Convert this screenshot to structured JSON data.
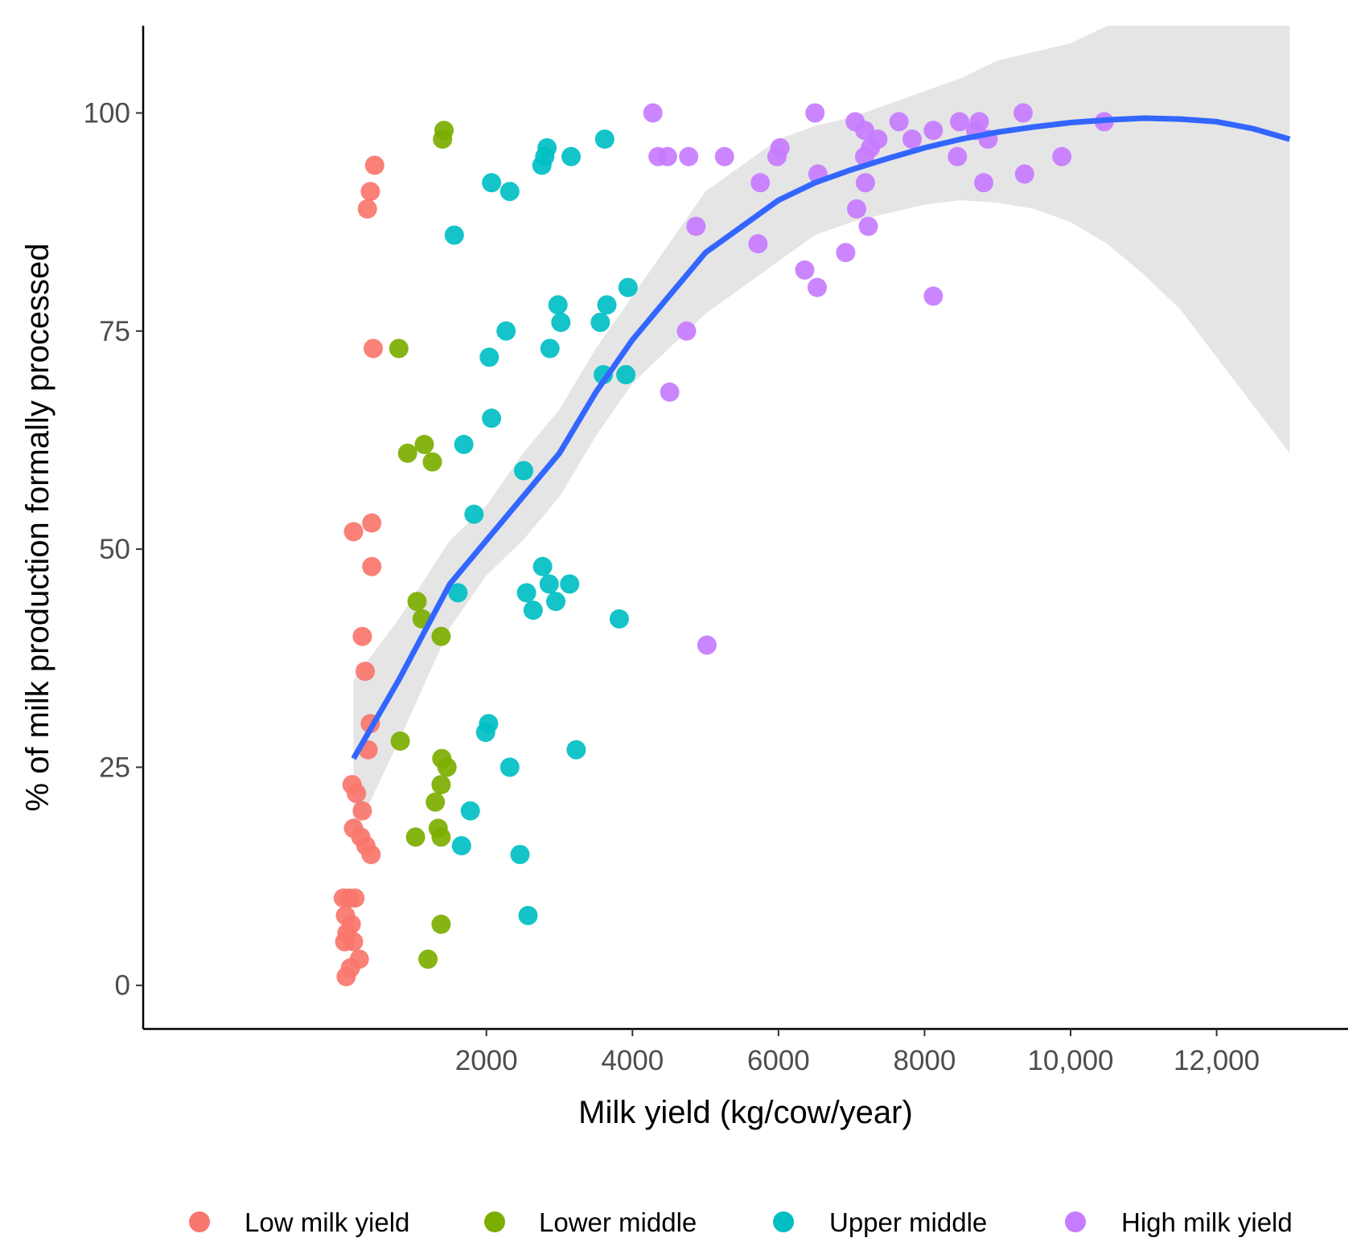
{
  "chart_data": {
    "type": "scatter",
    "title": "",
    "xlabel": "Milk yield (kg/cow/year)",
    "ylabel": "% of milk production formally processed",
    "xlim": [
      -2700,
      13800
    ],
    "ylim": [
      -5,
      110
    ],
    "x_ticks": [
      {
        "value": 2000,
        "label": "2000"
      },
      {
        "value": 4000,
        "label": "4000"
      },
      {
        "value": 6000,
        "label": "6000"
      },
      {
        "value": 8000,
        "label": "8000"
      },
      {
        "value": 10000,
        "label": "10,000"
      },
      {
        "value": 12000,
        "label": "12,000"
      }
    ],
    "y_ticks": [
      {
        "value": 0,
        "label": "0"
      },
      {
        "value": 25,
        "label": "25"
      },
      {
        "value": 50,
        "label": "50"
      },
      {
        "value": 75,
        "label": "75"
      },
      {
        "value": 100,
        "label": "100"
      }
    ],
    "grid": false,
    "legend_position": "bottom",
    "series": [
      {
        "name": "Low milk yield",
        "color": "#f8766d",
        "points": [
          [
            470,
            94
          ],
          [
            410,
            91
          ],
          [
            370,
            89
          ],
          [
            450,
            73
          ],
          [
            180,
            52
          ],
          [
            430,
            53
          ],
          [
            430,
            48
          ],
          [
            300,
            40
          ],
          [
            340,
            36
          ],
          [
            410,
            30
          ],
          [
            380,
            27
          ],
          [
            160,
            23
          ],
          [
            220,
            22
          ],
          [
            300,
            20
          ],
          [
            180,
            18
          ],
          [
            280,
            17
          ],
          [
            350,
            16
          ],
          [
            420,
            15
          ],
          [
            40,
            10
          ],
          [
            120,
            10
          ],
          [
            200,
            10
          ],
          [
            70,
            8
          ],
          [
            150,
            7
          ],
          [
            90,
            6
          ],
          [
            180,
            5
          ],
          [
            60,
            5
          ],
          [
            140,
            2
          ],
          [
            80,
            1
          ],
          [
            260,
            3
          ]
        ]
      },
      {
        "name": "Lower middle",
        "color": "#7cae00",
        "points": [
          [
            1420,
            98
          ],
          [
            1400,
            97
          ],
          [
            800,
            73
          ],
          [
            920,
            61
          ],
          [
            1150,
            62
          ],
          [
            1260,
            60
          ],
          [
            1050,
            44
          ],
          [
            1120,
            42
          ],
          [
            1380,
            40
          ],
          [
            820,
            28
          ],
          [
            1390,
            26
          ],
          [
            1460,
            25
          ],
          [
            1380,
            23
          ],
          [
            1300,
            21
          ],
          [
            1030,
            17
          ],
          [
            1380,
            17
          ],
          [
            1340,
            18
          ],
          [
            1380,
            7
          ],
          [
            1200,
            3
          ]
        ]
      },
      {
        "name": "Upper middle",
        "color": "#00bfc4",
        "points": [
          [
            3620,
            97
          ],
          [
            2830,
            96
          ],
          [
            2800,
            95
          ],
          [
            3160,
            95
          ],
          [
            2760,
            94
          ],
          [
            2070,
            92
          ],
          [
            2320,
            91
          ],
          [
            1560,
            86
          ],
          [
            3940,
            80
          ],
          [
            2980,
            78
          ],
          [
            3650,
            78
          ],
          [
            3560,
            76
          ],
          [
            3020,
            76
          ],
          [
            2270,
            75
          ],
          [
            2870,
            73
          ],
          [
            2040,
            72
          ],
          [
            3600,
            70
          ],
          [
            3910,
            70
          ],
          [
            2070,
            65
          ],
          [
            1690,
            62
          ],
          [
            2510,
            59
          ],
          [
            1830,
            54
          ],
          [
            2770,
            48
          ],
          [
            2860,
            46
          ],
          [
            3140,
            46
          ],
          [
            1610,
            45
          ],
          [
            2550,
            45
          ],
          [
            2640,
            43
          ],
          [
            2950,
            44
          ],
          [
            3820,
            42
          ],
          [
            2030,
            30
          ],
          [
            1990,
            29
          ],
          [
            3230,
            27
          ],
          [
            2320,
            25
          ],
          [
            1780,
            20
          ],
          [
            1660,
            16
          ],
          [
            2460,
            15
          ],
          [
            2570,
            8
          ]
        ]
      },
      {
        "name": "High milk yield",
        "color": "#c77cff",
        "points": [
          [
            4280,
            100
          ],
          [
            6500,
            100
          ],
          [
            7650,
            99
          ],
          [
            8480,
            99
          ],
          [
            8750,
            99
          ],
          [
            9350,
            100
          ],
          [
            10460,
            99
          ],
          [
            7050,
            99
          ],
          [
            7180,
            98
          ],
          [
            7360,
            97
          ],
          [
            7830,
            97
          ],
          [
            8120,
            98
          ],
          [
            8700,
            98
          ],
          [
            6020,
            96
          ],
          [
            5980,
            95
          ],
          [
            4350,
            95
          ],
          [
            4480,
            95
          ],
          [
            4770,
            95
          ],
          [
            5260,
            95
          ],
          [
            7180,
            95
          ],
          [
            8450,
            95
          ],
          [
            9880,
            95
          ],
          [
            6540,
            93
          ],
          [
            9370,
            93
          ],
          [
            5750,
            92
          ],
          [
            7190,
            92
          ],
          [
            8810,
            92
          ],
          [
            7070,
            89
          ],
          [
            4870,
            87
          ],
          [
            7230,
            87
          ],
          [
            5720,
            85
          ],
          [
            6920,
            84
          ],
          [
            6360,
            82
          ],
          [
            6530,
            80
          ],
          [
            8120,
            79
          ],
          [
            4740,
            75
          ],
          [
            4510,
            68
          ],
          [
            5020,
            39
          ],
          [
            7260,
            96
          ],
          [
            8870,
            97
          ]
        ]
      }
    ],
    "smooth_fit": {
      "name": "Trend",
      "color": "#3366ff",
      "band_color": "#e5e5e5",
      "x": [
        180,
        800,
        1500,
        2000,
        2500,
        3000,
        3500,
        4000,
        4500,
        5000,
        5500,
        6000,
        6500,
        7000,
        7500,
        8000,
        8500,
        9000,
        9500,
        10000,
        10500,
        11000,
        11500,
        12000,
        12500,
        13000
      ],
      "y": [
        26,
        35,
        46,
        51,
        56,
        61,
        68,
        74,
        79,
        84,
        87,
        90,
        92,
        93.5,
        94.8,
        96,
        97,
        97.8,
        98.4,
        98.9,
        99.2,
        99.4,
        99.3,
        99,
        98.2,
        97
      ],
      "band_lower": [
        17,
        28,
        41,
        47,
        51,
        56,
        63,
        69,
        73,
        77,
        80,
        83,
        86,
        87.5,
        88.5,
        89.5,
        90,
        89.7,
        89,
        87.5,
        85,
        81.5,
        77.5,
        72,
        66.5,
        61
      ],
      "band_upper": [
        35,
        42,
        51,
        55,
        61,
        66,
        73,
        79,
        85,
        91,
        94,
        97,
        98.5,
        99.5,
        101,
        102.5,
        104,
        106,
        107,
        108,
        110,
        110,
        110,
        110,
        110,
        110
      ]
    }
  }
}
